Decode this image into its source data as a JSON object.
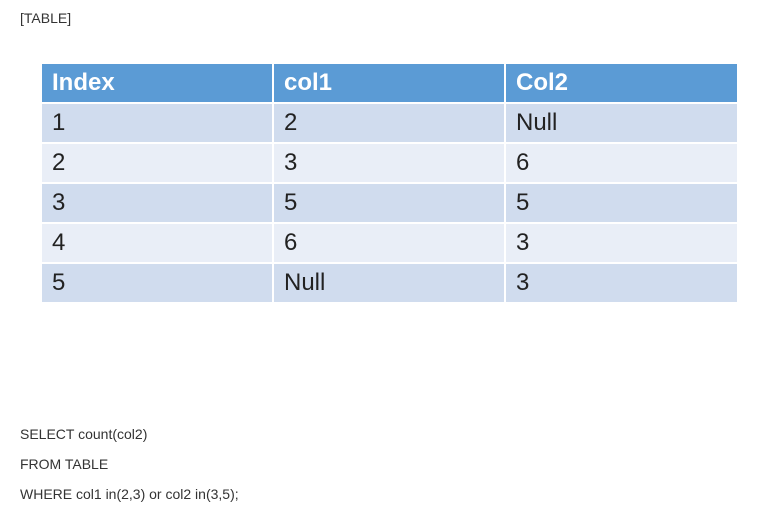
{
  "caption": "[TABLE]",
  "table": {
    "headers": [
      "Index",
      "col1",
      "Col2"
    ],
    "rows": [
      [
        "1",
        "2",
        "Null"
      ],
      [
        "2",
        "3",
        "6"
      ],
      [
        "3",
        "5",
        "5"
      ],
      [
        "4",
        "6",
        "3"
      ],
      [
        "5",
        "Null",
        "3"
      ]
    ],
    "colors": {
      "header_bg": "#5b9bd5",
      "row_odd_bg": "#d0dcee",
      "row_even_bg": "#e9eef7"
    }
  },
  "query": {
    "lines": [
      "SELECT count(col2)",
      "FROM TABLE",
      "WHERE col1 in(2,3) or col2 in(3,5);"
    ]
  }
}
